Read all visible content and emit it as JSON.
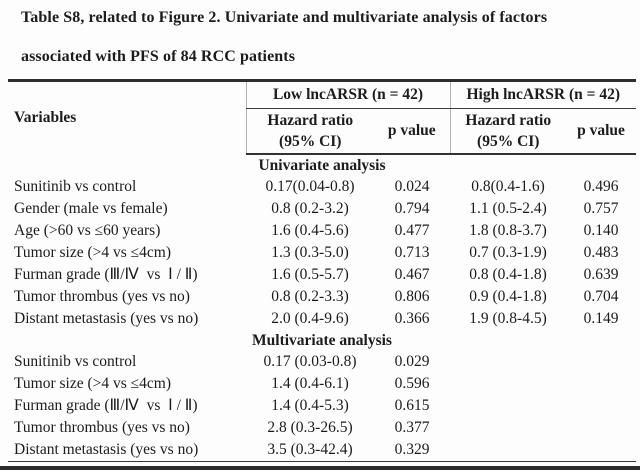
{
  "title_line1": "Table S8, related to Figure 2. Univariate and multivariate analysis of factors",
  "title_line2": "associated with PFS of 84 RCC patients",
  "table": {
    "variables_header": "Variables",
    "groups": [
      {
        "label": "Low lncARSR (n = 42)"
      },
      {
        "label": "High lncARSR (n = 42)"
      }
    ],
    "subheaders": {
      "hazard_line1": "Hazard ratio",
      "hazard_line2": "(95% CI)",
      "p_value": "p value"
    },
    "sections": [
      {
        "label": "Univariate analysis",
        "rows": [
          {
            "variable": "Sunitinib vs control",
            "low_hr": "0.17(0.04-0.8)",
            "low_p": "0.024",
            "high_hr": "0.8(0.4-1.6)",
            "high_p": "0.496"
          },
          {
            "variable": "Gender (male vs female)",
            "low_hr": "0.8 (0.2-3.2)",
            "low_p": "0.794",
            "high_hr": "1.1 (0.5-2.4)",
            "high_p": "0.757"
          },
          {
            "variable": "Age (>60 vs ≤60 years)",
            "low_hr": "1.6 (0.4-5.6)",
            "low_p": "0.477",
            "high_hr": "1.8 (0.8-3.7)",
            "high_p": "0.140"
          },
          {
            "variable": "Tumor size (>4 vs ≤4cm)",
            "low_hr": "1.3 (0.3-5.0)",
            "low_p": "0.713",
            "high_hr": "0.7 (0.3-1.9)",
            "high_p": "0.483"
          },
          {
            "variable": "Furman grade (Ⅲ/Ⅳ vs Ⅰ / Ⅱ)",
            "low_hr": "1.6 (0.5-5.7)",
            "low_p": "0.467",
            "high_hr": "0.8 (0.4-1.8)",
            "high_p": "0.639"
          },
          {
            "variable": "Tumor thrombus (yes vs no)",
            "low_hr": "0.8 (0.2-3.3)",
            "low_p": "0.806",
            "high_hr": "0.9 (0.4-1.8)",
            "high_p": "0.704"
          },
          {
            "variable": "Distant metastasis (yes vs no)",
            "low_hr": "2.0 (0.4-9.6)",
            "low_p": "0.366",
            "high_hr": "1.9 (0.8-4.5)",
            "high_p": "0.149"
          }
        ]
      },
      {
        "label": "Multivariate analysis",
        "rows": [
          {
            "variable": "Sunitinib vs control",
            "low_hr": "0.17 (0.03-0.8)",
            "low_p": "0.029",
            "high_hr": "",
            "high_p": ""
          },
          {
            "variable": "Tumor size (>4 vs ≤4cm)",
            "low_hr": "1.4 (0.4-6.1)",
            "low_p": "0.596",
            "high_hr": "",
            "high_p": ""
          },
          {
            "variable": "Furman grade (Ⅲ/Ⅳ vs Ⅰ / Ⅱ)",
            "low_hr": "1.4 (0.4-5.3)",
            "low_p": "0.615",
            "high_hr": "",
            "high_p": ""
          },
          {
            "variable": "Tumor thrombus (yes vs no)",
            "low_hr": "2.8 (0.3-26.5)",
            "low_p": "0.377",
            "high_hr": "",
            "high_p": ""
          },
          {
            "variable": "Distant metastasis (yes vs no)",
            "low_hr": "3.5 (0.3-42.4)",
            "low_p": "0.329",
            "high_hr": "",
            "high_p": ""
          }
        ]
      }
    ]
  }
}
